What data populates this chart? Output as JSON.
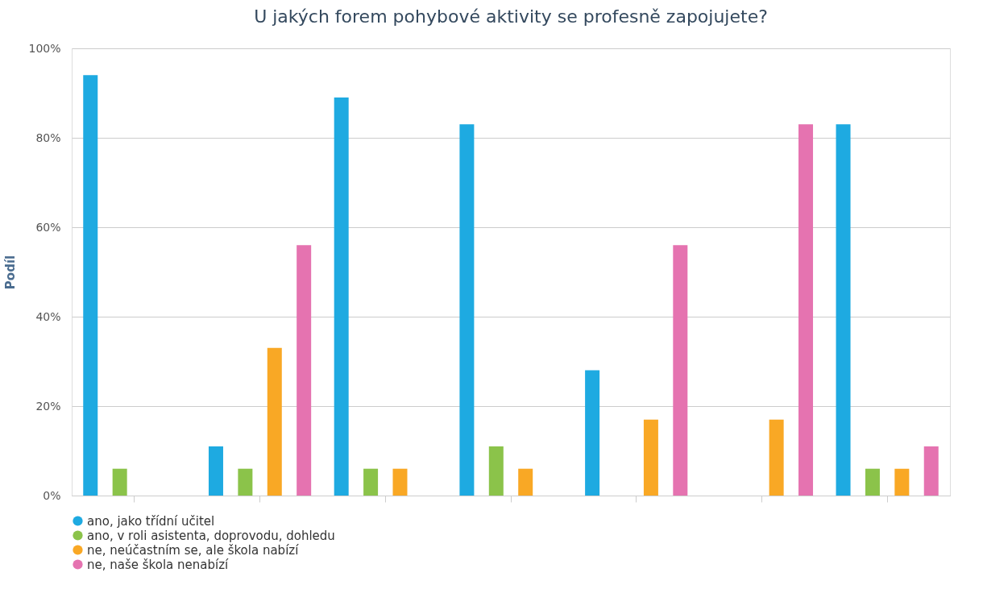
{
  "chart_data": {
    "type": "bar",
    "title": "U jakých forem pohybové aktivity se profesně zapojujete?",
    "ylabel": "Podíl",
    "categories": [
      null,
      null,
      null,
      null,
      null,
      null,
      null
    ],
    "series": [
      {
        "name": "ano, jako třídní učitel",
        "color": "#1eaae1",
        "values": [
          94,
          11,
          89,
          83,
          28,
          null,
          83
        ]
      },
      {
        "name": "ano, v roli asistenta, doprovodu, dohledu",
        "color": "#8bc34a",
        "values": [
          6,
          6,
          6,
          11,
          null,
          null,
          6
        ]
      },
      {
        "name": "ne, neúčastním se, ale škola nabízí",
        "color": "#f9a825",
        "values": [
          null,
          33,
          6,
          6,
          17,
          17,
          6
        ]
      },
      {
        "name": "ne, naše škola nenabízí",
        "color": "#e573b0",
        "values": [
          null,
          56,
          null,
          null,
          56,
          83,
          11
        ]
      }
    ],
    "ylim": [
      0,
      100
    ],
    "yticks": [
      {
        "value": 0,
        "label": "0%"
      },
      {
        "value": 20,
        "label": "20%"
      },
      {
        "value": 40,
        "label": "40%"
      },
      {
        "value": 60,
        "label": "60%"
      },
      {
        "value": 80,
        "label": "80%"
      },
      {
        "value": 100,
        "label": "100%"
      }
    ],
    "grid": "y",
    "legend": "bottom",
    "tick_labels": "y"
  }
}
